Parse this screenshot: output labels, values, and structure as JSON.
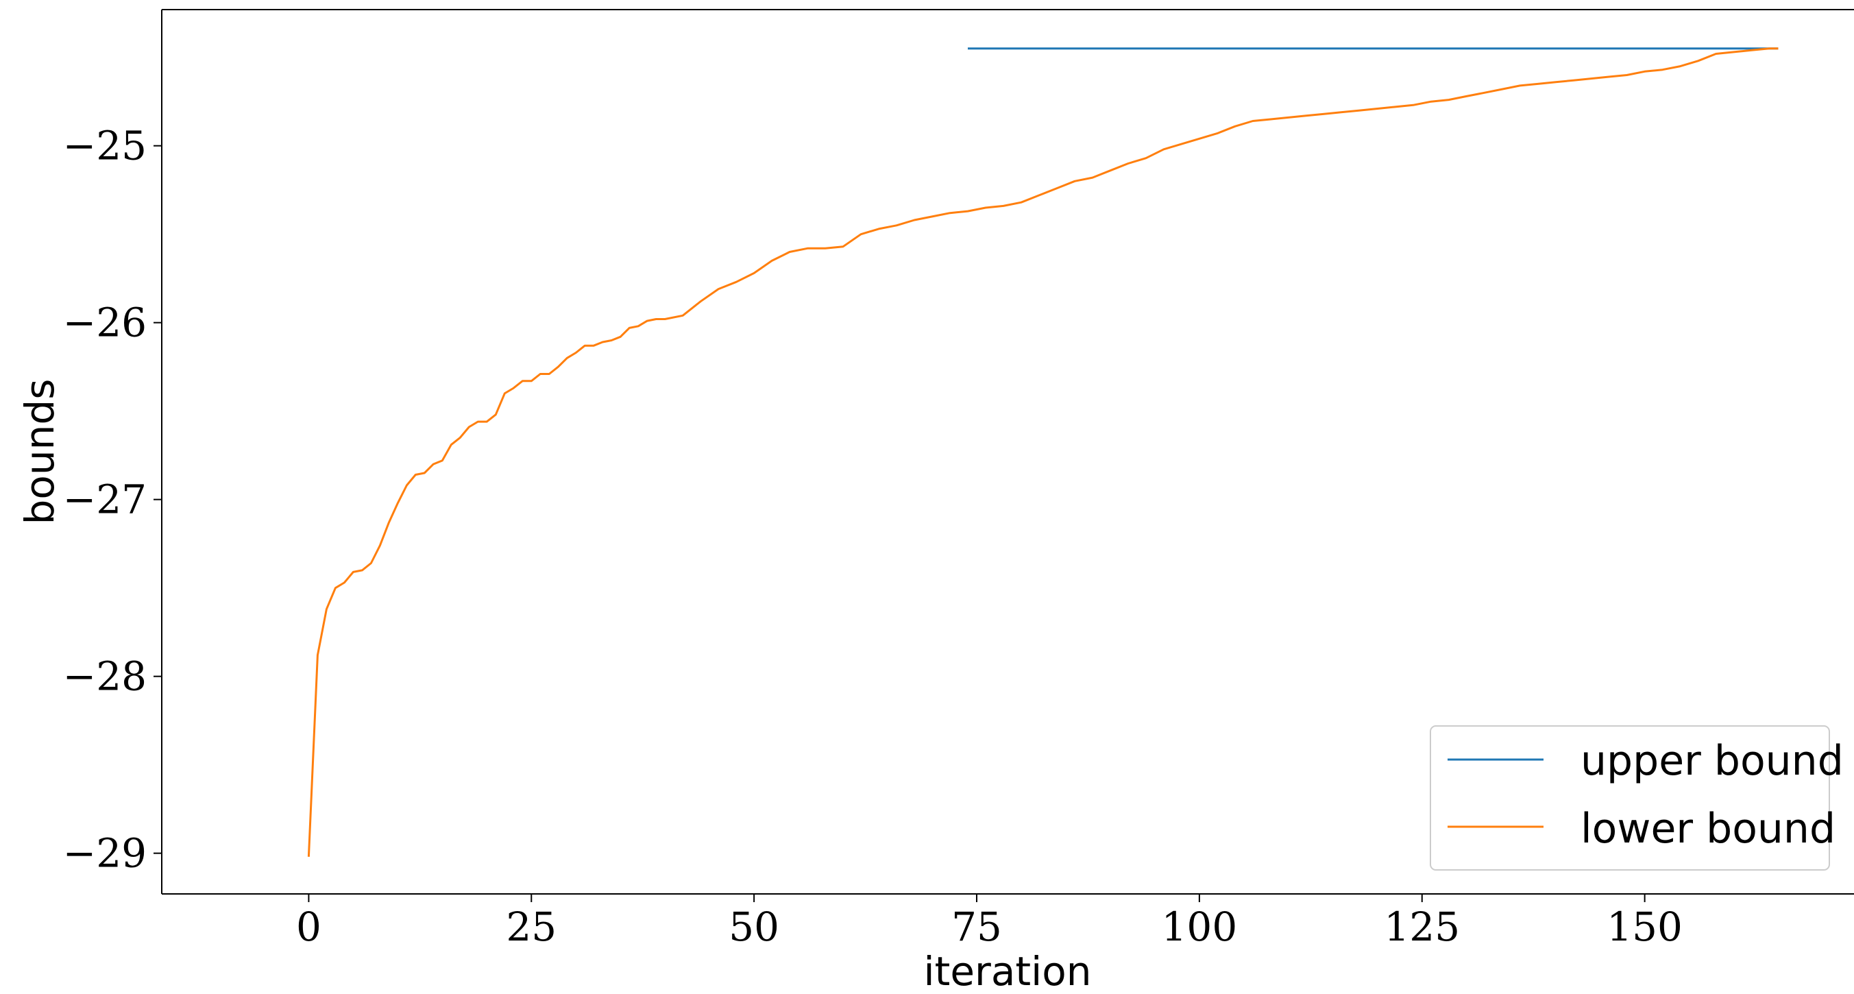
{
  "chart_data": {
    "type": "line",
    "xlabel": "iteration",
    "ylabel": "bounds",
    "xlim": [
      -16.5,
      173.5
    ],
    "ylim": [
      -29.23,
      -24.23
    ],
    "x_ticks": [
      0,
      25,
      50,
      75,
      100,
      125,
      150
    ],
    "y_ticks": [
      -29,
      -28,
      -27,
      -26,
      -25
    ],
    "y_tick_labels": [
      "−29",
      "−28",
      "−27",
      "−26",
      "−25"
    ],
    "grid": false,
    "legend_position": "lower right",
    "series": [
      {
        "name": "upper bound",
        "color": "#1f77b4",
        "x": [
          74,
          165
        ],
        "y": [
          -24.45,
          -24.45
        ]
      },
      {
        "name": "lower bound",
        "color": "#ff7f0e",
        "x": [
          0,
          1,
          2,
          3,
          4,
          5,
          6,
          7,
          8,
          9,
          10,
          11,
          12,
          13,
          14,
          15,
          16,
          17,
          18,
          19,
          20,
          21,
          22,
          23,
          24,
          25,
          26,
          27,
          28,
          29,
          30,
          31,
          32,
          33,
          34,
          35,
          36,
          37,
          38,
          39,
          40,
          42,
          44,
          46,
          48,
          50,
          52,
          54,
          56,
          58,
          60,
          62,
          64,
          66,
          68,
          70,
          72,
          74,
          76,
          78,
          80,
          82,
          84,
          86,
          88,
          90,
          92,
          94,
          96,
          98,
          100,
          102,
          104,
          106,
          108,
          110,
          112,
          114,
          116,
          118,
          120,
          122,
          124,
          126,
          128,
          130,
          132,
          134,
          136,
          138,
          140,
          142,
          144,
          146,
          148,
          150,
          152,
          154,
          156,
          158,
          160,
          162,
          164,
          165
        ],
        "y": [
          -29.02,
          -27.88,
          -27.62,
          -27.5,
          -27.47,
          -27.41,
          -27.4,
          -27.36,
          -27.26,
          -27.13,
          -27.02,
          -26.92,
          -26.86,
          -26.85,
          -26.8,
          -26.78,
          -26.69,
          -26.65,
          -26.59,
          -26.56,
          -26.56,
          -26.52,
          -26.4,
          -26.37,
          -26.33,
          -26.33,
          -26.29,
          -26.29,
          -26.25,
          -26.2,
          -26.17,
          -26.13,
          -26.13,
          -26.11,
          -26.1,
          -26.08,
          -26.03,
          -26.02,
          -25.99,
          -25.98,
          -25.98,
          -25.96,
          -25.88,
          -25.81,
          -25.77,
          -25.72,
          -25.65,
          -25.6,
          -25.58,
          -25.58,
          -25.57,
          -25.5,
          -25.47,
          -25.45,
          -25.42,
          -25.4,
          -25.38,
          -25.37,
          -25.35,
          -25.34,
          -25.32,
          -25.28,
          -25.24,
          -25.2,
          -25.18,
          -25.14,
          -25.1,
          -25.07,
          -25.02,
          -24.99,
          -24.96,
          -24.93,
          -24.89,
          -24.86,
          -24.85,
          -24.84,
          -24.83,
          -24.82,
          -24.81,
          -24.8,
          -24.79,
          -24.78,
          -24.77,
          -24.75,
          -24.74,
          -24.72,
          -24.7,
          -24.68,
          -24.66,
          -24.65,
          -24.64,
          -24.63,
          -24.62,
          -24.61,
          -24.6,
          -24.58,
          -24.57,
          -24.55,
          -24.52,
          -24.48,
          -24.47,
          -24.46,
          -24.45,
          -24.45
        ]
      }
    ]
  }
}
